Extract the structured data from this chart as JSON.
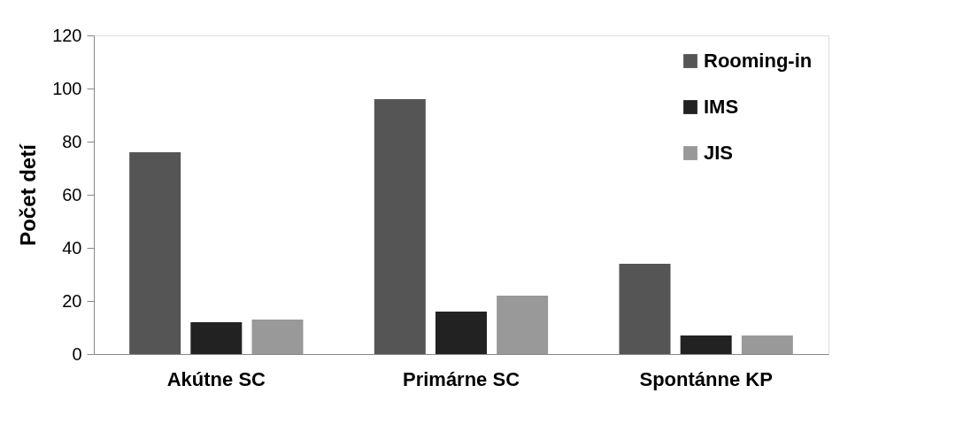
{
  "chart_data": {
    "type": "bar",
    "ylabel": "Počet detí",
    "categories": [
      "Akútne SC",
      "Primárne SC",
      "Spontánne KP"
    ],
    "series": [
      {
        "name": "Rooming-in",
        "color": "#555555",
        "values": [
          76,
          96,
          34
        ]
      },
      {
        "name": "IMS",
        "color": "#222222",
        "values": [
          12,
          16,
          7
        ]
      },
      {
        "name": "JIS",
        "color": "#999999",
        "values": [
          13,
          22,
          7
        ]
      }
    ],
    "ylim": [
      0,
      120
    ],
    "yticks": [
      0,
      20,
      40,
      60,
      80,
      100,
      120
    ],
    "grid": false,
    "legend": "top right"
  }
}
